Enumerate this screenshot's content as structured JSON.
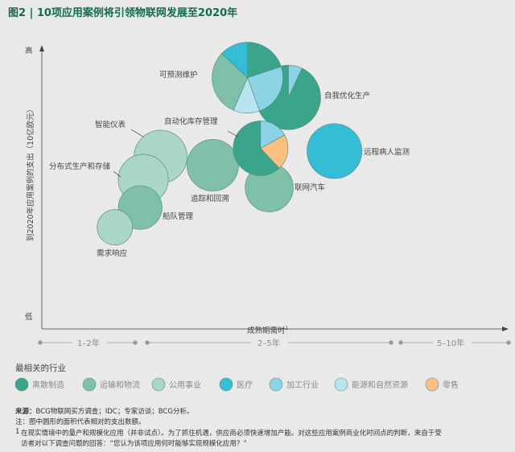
{
  "title": "图2 | 10项应用案例将引领物联网发展至2020年",
  "colors": {
    "background": "#e9e9e9",
    "title": "#136b50",
    "离散制造": "#3aa58a",
    "运输和物流": "#80c0a9",
    "公用事业": "#a9d6c7",
    "医疗": "#35bdd7",
    "加工行业": "#8dd3e6",
    "能源和自然资源": "#b7e4ee",
    "零售": "#fbbf7f"
  },
  "chart_data": {
    "type": "bubble-pie",
    "title": "图2 | 10项应用案例将引领物联网发展至2020年",
    "ylabel": "到2020年应用案例的支出（10亿欧元）",
    "y_high_label": "高",
    "y_low_label": "低",
    "xlabel": "成熟期需时",
    "xlabel_superscript": "1",
    "x_segments": [
      "1–2年",
      "2–5年",
      "5–10年"
    ],
    "grid": false,
    "legend_title": "最相关的行业",
    "legend_position": "bottom",
    "legend": [
      "离散制造",
      "运输和物流",
      "公用事业",
      "医疗",
      "加工行业",
      "能源和自然资源",
      "零售"
    ],
    "items": [
      {
        "name": "智能仪表",
        "years": 2.2,
        "spend_index": 61,
        "size": 56,
        "slices": [
          {
            "industry": "公用事业",
            "share": 1
          }
        ]
      },
      {
        "name": "分布式生产和存储",
        "years": 2.0,
        "spend_index": 53,
        "size": 50,
        "slices": [
          {
            "industry": "公用事业",
            "share": 1
          }
        ]
      },
      {
        "name": "船队管理",
        "years": 1.97,
        "spend_index": 43,
        "size": 38,
        "slices": [
          {
            "industry": "运输和物流",
            "share": 1
          }
        ]
      },
      {
        "name": "需求响应",
        "years": 1.72,
        "spend_index": 36,
        "size": 25,
        "slices": [
          {
            "industry": "公用事业",
            "share": 1
          }
        ]
      },
      {
        "name": "追踪和回溯",
        "years": 2.8,
        "spend_index": 58,
        "size": 53,
        "slices": [
          {
            "industry": "运输和物流",
            "share": 1
          }
        ]
      },
      {
        "name": "联网汽车",
        "years": 3.45,
        "spend_index": 50,
        "size": 46,
        "slices": [
          {
            "industry": "运输和物流",
            "share": 1
          }
        ]
      },
      {
        "name": "自我优化生产",
        "years": 3.67,
        "spend_index": 82,
        "size": 83,
        "slices": [
          {
            "industry": "加工行业",
            "share": 0.07
          },
          {
            "industry": "离散制造",
            "share": 0.93
          }
        ]
      },
      {
        "name": "可预测维护",
        "years": 3.2,
        "spend_index": 89,
        "size": 100,
        "slices": [
          {
            "industry": "离散制造",
            "share": 0.2
          },
          {
            "industry": "加工行业",
            "share": 0.245
          },
          {
            "industry": "能源和自然资源",
            "share": 0.12
          },
          {
            "industry": "运输和物流",
            "share": 0.305
          },
          {
            "industry": "医疗",
            "share": 0.13
          }
        ]
      },
      {
        "name": "自动化库存管理",
        "years": 3.35,
        "spend_index": 64,
        "size": 60,
        "slices": [
          {
            "industry": "加工行业",
            "share": 0.17
          },
          {
            "industry": "零售",
            "share": 0.21
          },
          {
            "industry": "离散制造",
            "share": 0.62
          }
        ]
      },
      {
        "name": "远程病人监测",
        "years": 4.2,
        "spend_index": 63,
        "size": 60,
        "slices": [
          {
            "industry": "医疗",
            "share": 1
          }
        ]
      }
    ]
  },
  "notes": {
    "source_label": "来源：",
    "source": "BCG物联网买方调查；IDC；专家访谈；BCG分析。",
    "note": "注：图中圆形的面积代表相对的支出数额。",
    "footnote_mark": "1",
    "footnote_line1": "在现实情境中的量产和规模化应用（并非试点）。为了抓住机遇，供应商必须快速增加产能。对这些应用案例商业化时间点的判断，来自于受",
    "footnote_line2": "访者对以下调查问题的回答：“您认为该项应用何时能够实现规模化应用？”"
  }
}
